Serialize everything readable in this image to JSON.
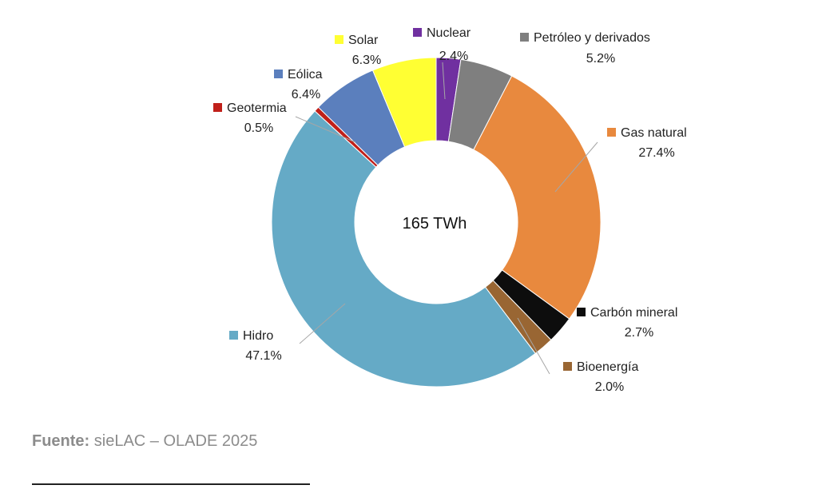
{
  "chart_data": {
    "type": "pie",
    "center_label": "165 TWh",
    "slices": [
      {
        "label": "Nuclear",
        "value": 2.4,
        "value_label": "2.4%",
        "color": "#7030a0"
      },
      {
        "label": "Petróleo y derivados",
        "value": 5.2,
        "value_label": "5.2%",
        "color": "#7f7f7f"
      },
      {
        "label": "Gas natural",
        "value": 27.4,
        "value_label": "27.4%",
        "color": "#e8893e"
      },
      {
        "label": "Carbón mineral",
        "value": 2.7,
        "value_label": "2.7%",
        "color": "#0d0d0d"
      },
      {
        "label": "Bioenergía",
        "value": 2.0,
        "value_label": "2.0%",
        "color": "#996633"
      },
      {
        "label": "Hidro",
        "value": 47.1,
        "value_label": "47.1%",
        "color": "#65aac6"
      },
      {
        "label": "Geotermia",
        "value": 0.5,
        "value_label": "0.5%",
        "color": "#c0201a"
      },
      {
        "label": "Eólica",
        "value": 6.4,
        "value_label": "6.4%",
        "color": "#5b7fbd"
      },
      {
        "label": "Solar",
        "value": 6.3,
        "value_label": "6.3%",
        "color": "#ffff33"
      }
    ]
  },
  "source": {
    "label": "Fuente:",
    "text": " sieLAC – OLADE 2025"
  }
}
